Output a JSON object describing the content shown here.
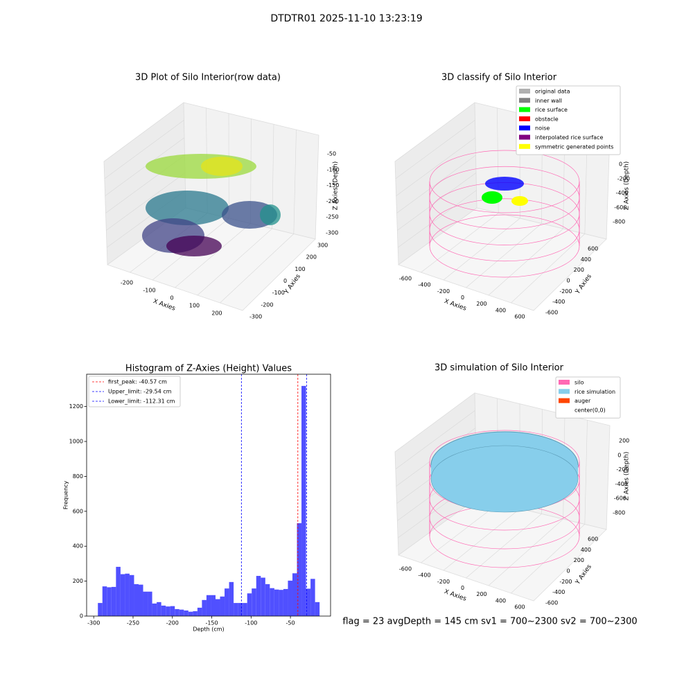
{
  "title": "DTDTR01 2025-11-10 13:23:19",
  "footer": "flag = 23  avgDepth = 145 cm  sv1 = 700~2300  sv2 = 700~2300",
  "chart_data": [
    {
      "type": "scatter3d",
      "title": "3D Plot of Silo Interior(row data)",
      "xlabel": "X Axies",
      "ylabel": "Y Axies",
      "zlabel": "Z Axies (Depth)",
      "xticks": [
        -200,
        -100,
        0,
        100,
        200
      ],
      "yticks": [
        300,
        200,
        100,
        0,
        -100,
        -200,
        -300
      ],
      "zticks": [
        -50,
        -100,
        -150,
        -200,
        -250,
        -300
      ]
    },
    {
      "type": "classify3d",
      "title": "3D classify of Silo Interior",
      "xlabel": "X Axies",
      "ylabel": "Y Axies",
      "zlabel": "Z Axies (Depth)",
      "xticks": [
        -600,
        -400,
        -200,
        0,
        200,
        400,
        600
      ],
      "yticks": [
        600,
        400,
        200,
        0,
        -200,
        -400,
        -600
      ],
      "zticks": [
        0,
        -200,
        -400,
        -600,
        -800
      ],
      "legend": [
        {
          "name": "original data",
          "color": "#b0b0b0"
        },
        {
          "name": "inner wall",
          "color": "#808080"
        },
        {
          "name": "rice surface",
          "color": "#00ff00"
        },
        {
          "name": "obstacle",
          "color": "#ff0000"
        },
        {
          "name": "noise",
          "color": "#0000ff"
        },
        {
          "name": "interpolated rice surface",
          "color": "#800080"
        },
        {
          "name": "symmetric generated points",
          "color": "#ffff00"
        }
      ]
    },
    {
      "type": "histogram",
      "title": "Histogram of Z-Axies (Height) Values",
      "xlabel": "Depth (cm)",
      "ylabel": "Frequency",
      "color": "#5050ff",
      "bins": [
        -294.7,
        -288.95,
        -283.2,
        -277.45,
        -271.7,
        -265.95,
        -260.2,
        -254.45,
        -248.7,
        -242.95,
        -237.2,
        -231.45,
        -225.7,
        -219.95,
        -214.2,
        -208.45,
        -202.7,
        -196.95,
        -191.2,
        -185.45,
        -179.7,
        -173.95,
        -168.2,
        -162.45,
        -156.7,
        -150.95,
        -145.2,
        -139.45,
        -133.7,
        -127.95,
        -122.2,
        -116.45,
        -110.7,
        -104.95,
        -99.2,
        -93.45,
        -87.7,
        -81.95,
        -76.2,
        -70.45,
        -64.7,
        -58.95,
        -53.2,
        -47.45,
        -41.7,
        -35.95,
        -30.2,
        -24.45,
        -18.7,
        -12.95
      ],
      "values": [
        75,
        170,
        165,
        167,
        282,
        240,
        243,
        235,
        183,
        180,
        140,
        140,
        72,
        80,
        60,
        55,
        57,
        40,
        37,
        32,
        25,
        28,
        48,
        92,
        120,
        120,
        97,
        112,
        158,
        195,
        75,
        75,
        75,
        130,
        158,
        230,
        220,
        183,
        160,
        152,
        150,
        155,
        203,
        245,
        532,
        1318,
        157,
        213,
        80
      ],
      "xlim": [
        -309,
        1
      ],
      "ylim": [
        0,
        1385
      ],
      "xticks": [
        -300,
        -250,
        -200,
        -150,
        -100,
        -50
      ],
      "yticks": [
        0,
        200,
        400,
        600,
        800,
        1000,
        1200
      ],
      "vlines": [
        {
          "value": -40.57,
          "label": "first_peak: -40.57 cm",
          "color": "#ff0000"
        },
        {
          "value": -29.54,
          "label": "Upper_limit: -29.54 cm",
          "color": "#0000ff"
        },
        {
          "value": -112.31,
          "label": "Lower_limit: -112.31 cm",
          "color": "#0000ff"
        }
      ],
      "legend_loc": "upper left"
    },
    {
      "type": "simulation3d",
      "title": "3D simulation of Silo Interior",
      "xlabel": "X Axies",
      "ylabel": "Y Axies",
      "zlabel": "Z Axies (Depth)",
      "xticks": [
        -600,
        -400,
        -200,
        0,
        200,
        400,
        600
      ],
      "yticks": [
        600,
        400,
        200,
        0,
        -200,
        -400,
        -600
      ],
      "zticks": [
        200,
        0,
        -200,
        -400,
        -600,
        -800
      ],
      "legend": [
        {
          "name": "silo",
          "color": "#ff69b4"
        },
        {
          "name": "rice simulation",
          "color": "#87ceeb"
        },
        {
          "name": "auger",
          "color": "#ff4500"
        },
        {
          "name": "center(0,0)",
          "color": "#ffffff"
        }
      ]
    }
  ]
}
